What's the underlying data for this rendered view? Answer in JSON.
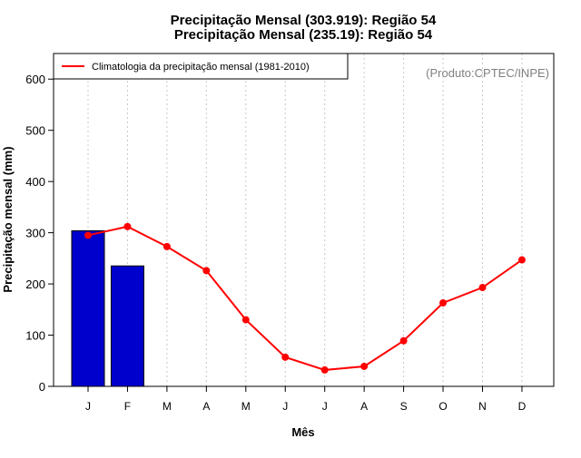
{
  "chart_data": {
    "type": "bar",
    "title_line1": "Precipitação Mensal (303.919): Região 54",
    "title_line2": "Precipitação Mensal (235.19): Região 54",
    "xlabel": "Mês",
    "ylabel": "Precipitação mensal (mm)",
    "credit": "(Produto:CPTEC/INPE)",
    "categories": [
      "J",
      "F",
      "M",
      "A",
      "M",
      "J",
      "J",
      "A",
      "S",
      "O",
      "N",
      "D"
    ],
    "ylim": [
      0,
      650
    ],
    "yticks": [
      0,
      100,
      200,
      300,
      400,
      500,
      600
    ],
    "grid": "vertical dotted",
    "legend_position": "top-left",
    "series": [
      {
        "name": "",
        "kind": "bar",
        "color": "#0000CD",
        "values": [
          303.919,
          235.19,
          null,
          null,
          null,
          null,
          null,
          null,
          null,
          null,
          null,
          null
        ]
      },
      {
        "name": "Climatologia da precipitação mensal (1981-2010)",
        "kind": "line",
        "color": "#FF0000",
        "values": [
          295,
          312,
          273,
          226,
          130,
          57,
          32,
          39,
          89,
          163,
          193,
          247
        ]
      }
    ]
  }
}
